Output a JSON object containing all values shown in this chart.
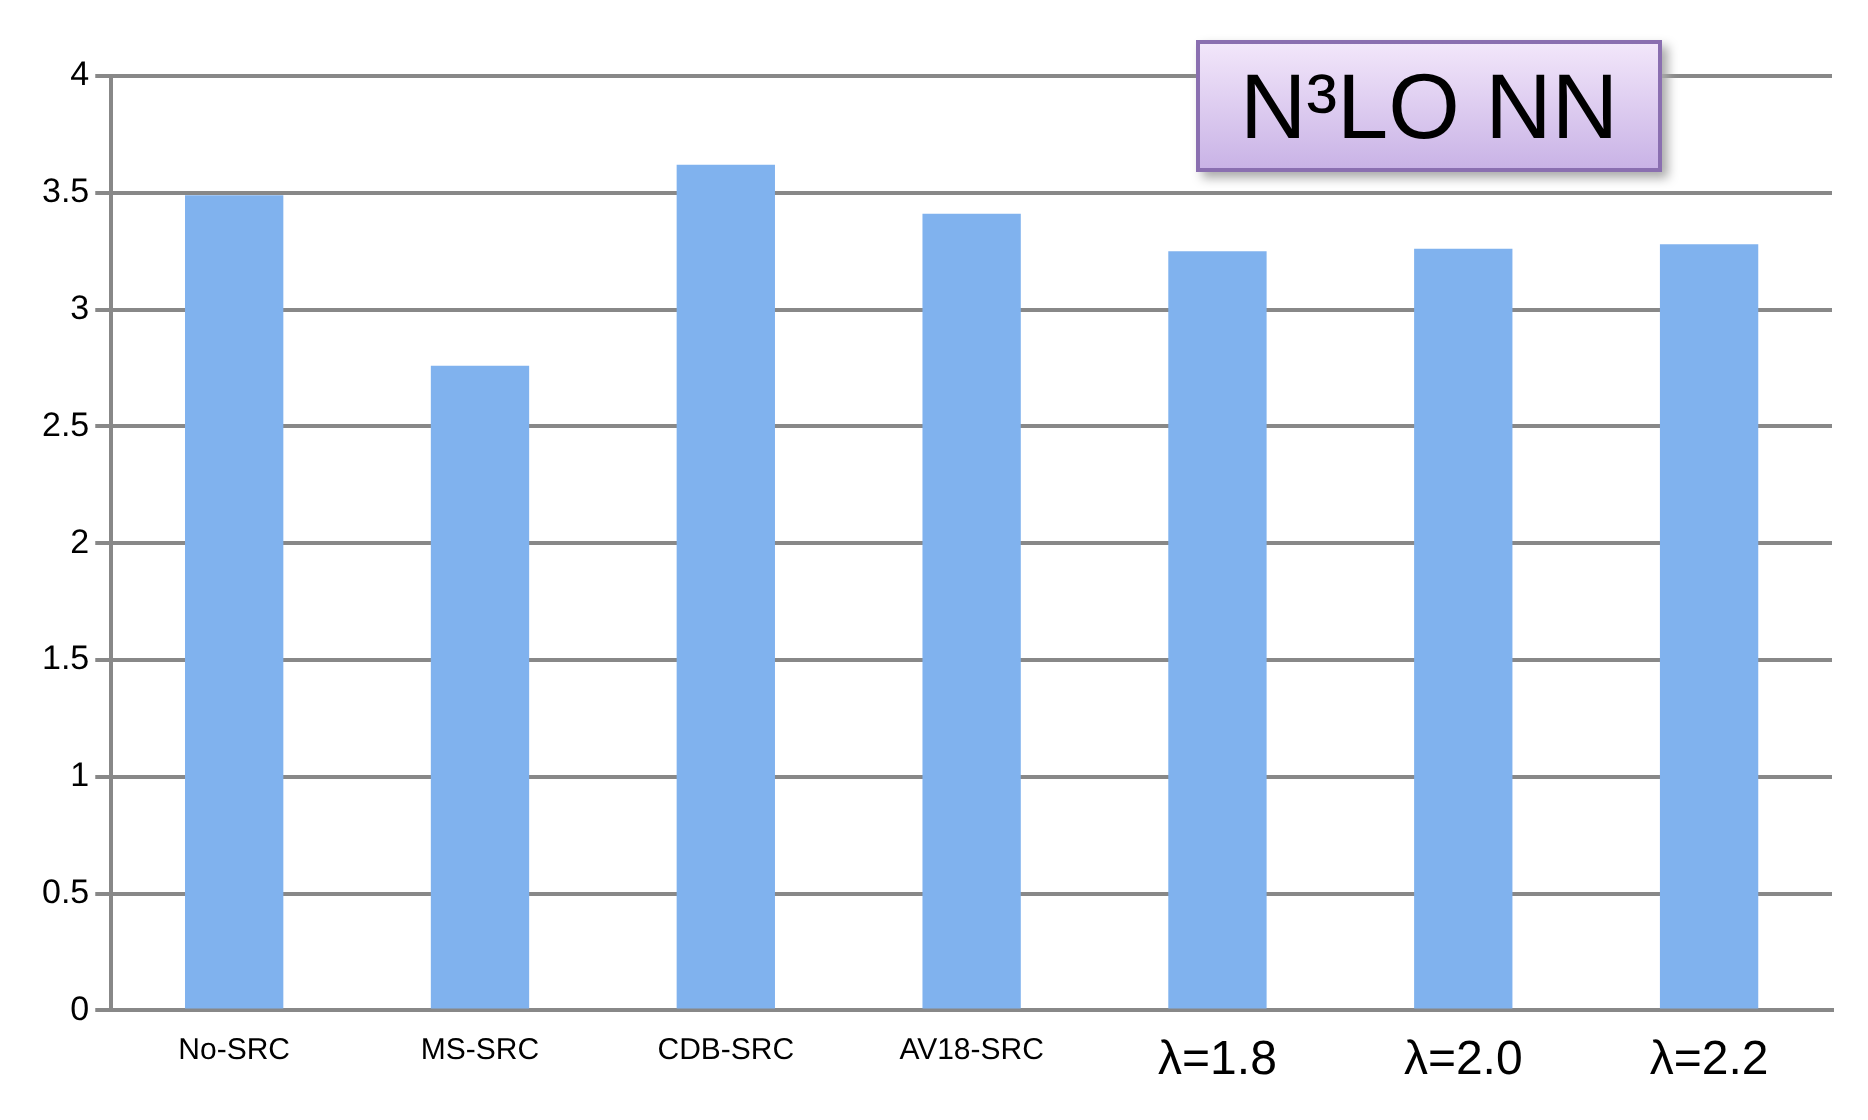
{
  "chart_data": {
    "type": "bar",
    "categories": [
      "No-SRC",
      "MS-SRC",
      "CDB-SRC",
      "AV18-SRC",
      "λ=1.8",
      "λ=2.0",
      "λ=2.2"
    ],
    "values": [
      3.49,
      2.76,
      3.62,
      3.41,
      3.25,
      3.26,
      3.28
    ],
    "color": "#80b2ee",
    "ylim": [
      0,
      4
    ],
    "yticks": [
      0,
      0.5,
      1,
      1.5,
      2,
      2.5,
      3,
      3.5,
      4
    ],
    "grid": "y",
    "legend": false,
    "annotations": [
      "N³LO NN"
    ]
  }
}
